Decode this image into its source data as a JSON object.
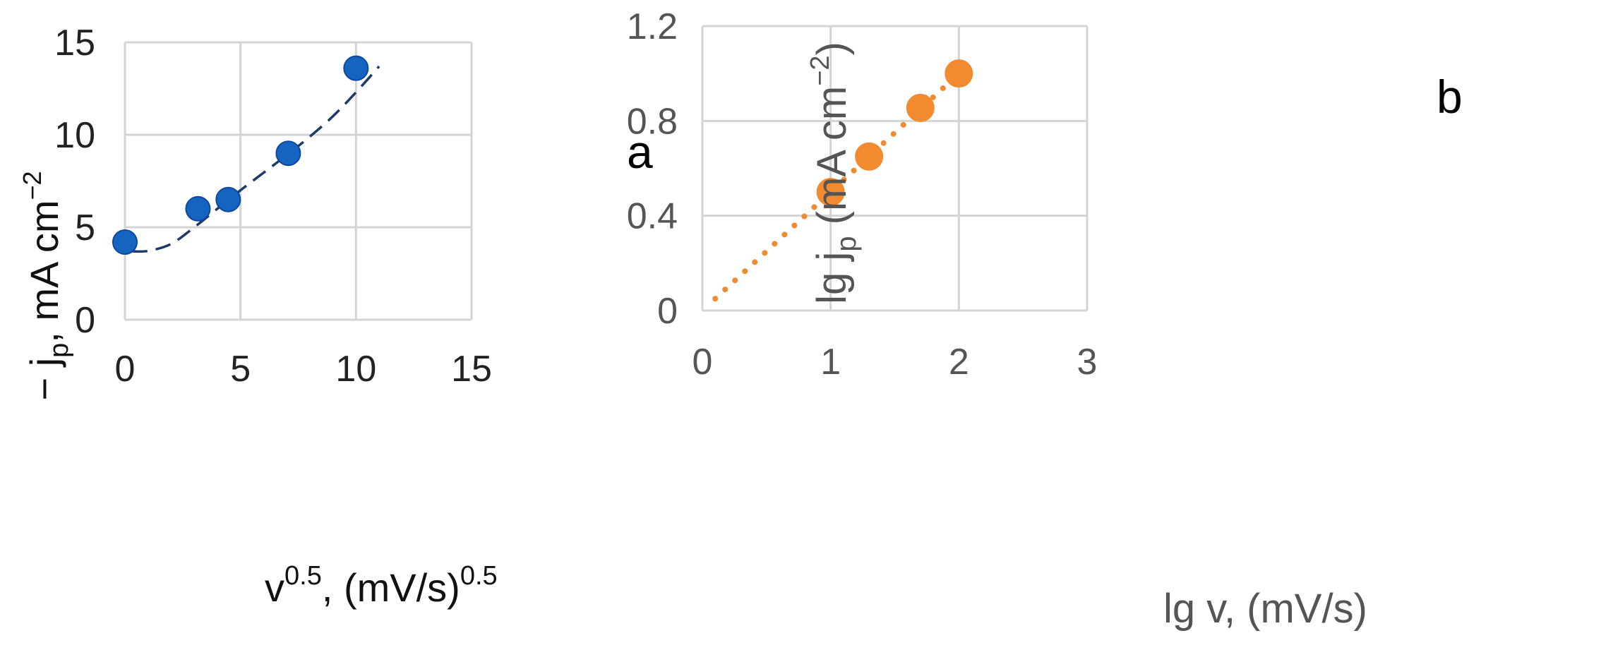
{
  "chart_data": [
    {
      "type": "scatter",
      "panel_label": "a",
      "xlabel": "v<tspan dy='-22' font-size='38'>0.5</tspan>",
      "xlabel_parts": {
        "base": "v",
        "sup1": "0.5",
        "mid": ", (mV/s)",
        "sup2": "0.5"
      },
      "ylabel_parts": {
        "pre": "− j",
        "sub": "p",
        "mid": ", mA cm",
        "sup": "−2"
      },
      "xlim": [
        0,
        15
      ],
      "ylim": [
        0,
        15
      ],
      "xticks": [
        "0",
        "5",
        "10",
        "15"
      ],
      "yticks": [
        "0",
        "5",
        "10",
        "15"
      ],
      "grid": true,
      "marker_color": "#1565c0",
      "line_color": "#1f3a68",
      "series": [
        {
          "points": [
            {
              "x": 0,
              "y": 4.2
            },
            {
              "x": 3.16,
              "y": 6.0
            },
            {
              "x": 4.47,
              "y": 6.5
            },
            {
              "x": 7.07,
              "y": 9.0
            },
            {
              "x": 10.0,
              "y": 13.6
            }
          ]
        }
      ],
      "fit_line": {
        "style": "dashed",
        "points": [
          {
            "x": 0.3,
            "y": 3.7
          },
          {
            "x": 1.0,
            "y": 3.72
          },
          {
            "x": 2.0,
            "y": 4.1
          },
          {
            "x": 3.0,
            "y": 5.0
          },
          {
            "x": 4.0,
            "y": 6.0
          },
          {
            "x": 5.0,
            "y": 7.0
          },
          {
            "x": 6.0,
            "y": 7.95
          },
          {
            "x": 7.0,
            "y": 8.9
          },
          {
            "x": 8.0,
            "y": 9.9
          },
          {
            "x": 9.0,
            "y": 11.0
          },
          {
            "x": 10.0,
            "y": 12.3
          },
          {
            "x": 11.0,
            "y": 13.7
          }
        ]
      }
    },
    {
      "type": "scatter",
      "panel_label": "b",
      "xlabel": "lg v, (mV/s)",
      "ylabel_parts": {
        "pre": "lg j",
        "sub": "p",
        "mid": " (mA cm",
        "sup": "−2",
        "post": ")"
      },
      "xlim": [
        0,
        3
      ],
      "ylim": [
        0,
        1.2
      ],
      "xticks": [
        "0",
        "1",
        "2",
        "3"
      ],
      "yticks": [
        "0",
        "0.4",
        "0.8",
        "1.2"
      ],
      "grid": true,
      "marker_color": "#f28a30",
      "series": [
        {
          "points": [
            {
              "x": 1.0,
              "y": 0.5
            },
            {
              "x": 1.3,
              "y": 0.65
            },
            {
              "x": 1.7,
              "y": 0.855
            },
            {
              "x": 2.0,
              "y": 1.0
            }
          ]
        }
      ],
      "fit_line": {
        "style": "dotted",
        "points": [
          {
            "x": 0.1,
            "y": 0.05
          },
          {
            "x": 2.0,
            "y": 1.0
          }
        ]
      }
    }
  ]
}
